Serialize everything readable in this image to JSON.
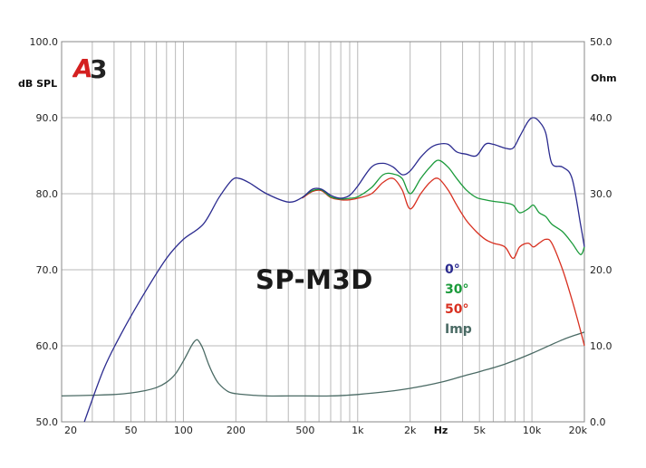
{
  "chart_data": {
    "type": "line",
    "title": "SP-M3D",
    "xlabel": "Hz",
    "ylabel_left": "dB SPL",
    "ylabel_right": "Ohm",
    "x_scale": "log",
    "xlim": [
      20,
      20000
    ],
    "ylim": [
      50,
      100
    ],
    "y2lim": [
      0,
      50
    ],
    "grid": true,
    "legend_position": "center-right",
    "x_ticks": [
      "20",
      "50",
      "100",
      "200",
      "500",
      "1k",
      "2k",
      "Hz",
      "5k",
      "10k",
      "20k"
    ],
    "y_ticks_left": [
      "100.0",
      "90.0",
      "80.0",
      "70.0",
      "60.0",
      "50.0"
    ],
    "y_ticks_right": [
      "50.0",
      "40.0",
      "30.0",
      "20.0",
      "10.0",
      "0.0"
    ],
    "series": [
      {
        "name": "0°",
        "axis": "left",
        "color": "#2b2b8f",
        "x": [
          27,
          35,
          45,
          60,
          80,
          100,
          130,
          160,
          190,
          210,
          240,
          300,
          400,
          480,
          550,
          620,
          700,
          800,
          900,
          1000,
          1200,
          1400,
          1600,
          1800,
          2000,
          2300,
          2600,
          2900,
          3300,
          3700,
          4200,
          4800,
          5400,
          6000,
          7000,
          7800,
          8500,
          9500,
          10200,
          11000,
          12000,
          13000,
          15000,
          17000,
          19000,
          20000
        ],
        "y": [
          50.0,
          57.0,
          62.0,
          67.0,
          71.5,
          74.0,
          76.0,
          79.5,
          81.8,
          82.0,
          81.4,
          80.0,
          78.9,
          79.5,
          80.6,
          80.6,
          79.8,
          79.4,
          79.8,
          81.0,
          83.5,
          84.0,
          83.5,
          82.5,
          83.0,
          84.8,
          86.0,
          86.5,
          86.5,
          85.5,
          85.2,
          85.0,
          86.5,
          86.5,
          86.0,
          86.0,
          87.5,
          89.5,
          90.0,
          89.5,
          88.0,
          84.0,
          83.5,
          82.0,
          76.0,
          73.0
        ]
      },
      {
        "name": "30°",
        "axis": "left",
        "color": "#1a9a3a",
        "x": [
          480,
          550,
          620,
          700,
          800,
          900,
          1000,
          1200,
          1400,
          1600,
          1800,
          2000,
          2300,
          2600,
          2900,
          3300,
          3700,
          4200,
          4800,
          5400,
          6000,
          7000,
          7800,
          8500,
          9500,
          10200,
          11000,
          12000,
          13000,
          15000,
          17000,
          19000,
          20000
        ],
        "y": [
          79.5,
          80.4,
          80.5,
          79.6,
          79.3,
          79.4,
          79.6,
          80.8,
          82.5,
          82.6,
          82.0,
          80.0,
          82.0,
          83.5,
          84.4,
          83.5,
          82.0,
          80.5,
          79.5,
          79.2,
          79.0,
          78.8,
          78.5,
          77.5,
          78.0,
          78.5,
          77.5,
          77.0,
          76.0,
          75.0,
          73.5,
          72.0,
          73.0
        ]
      },
      {
        "name": "50°",
        "axis": "left",
        "color": "#d83020",
        "x": [
          480,
          550,
          620,
          700,
          800,
          900,
          1000,
          1200,
          1400,
          1600,
          1800,
          2000,
          2300,
          2600,
          2900,
          3300,
          3700,
          4200,
          4800,
          5400,
          6000,
          7000,
          7800,
          8500,
          9500,
          10200,
          11000,
          12000,
          13000,
          15000,
          17000,
          19000,
          20000
        ],
        "y": [
          79.4,
          80.3,
          80.4,
          79.5,
          79.2,
          79.2,
          79.4,
          80.0,
          81.5,
          82.0,
          80.5,
          78.0,
          80.0,
          81.5,
          82.0,
          80.5,
          78.5,
          76.5,
          75.0,
          74.0,
          73.5,
          73.0,
          71.5,
          73.0,
          73.5,
          73.0,
          73.5,
          74.0,
          73.5,
          70.0,
          66.0,
          62.0,
          60.0
        ]
      },
      {
        "name": "Imp",
        "axis": "right",
        "color": "#4a6a64",
        "x": [
          20,
          30,
          40,
          50,
          60,
          70,
          80,
          90,
          100,
          110,
          115,
          120,
          125,
          130,
          140,
          150,
          160,
          180,
          200,
          250,
          300,
          400,
          500,
          700,
          1000,
          1500,
          2000,
          3000,
          4000,
          5000,
          7000,
          10000,
          15000,
          20000
        ],
        "y": [
          3.4,
          3.5,
          3.6,
          3.8,
          4.1,
          4.5,
          5.2,
          6.3,
          8.0,
          9.8,
          10.5,
          10.8,
          10.3,
          9.5,
          7.5,
          6.0,
          5.0,
          4.0,
          3.7,
          3.5,
          3.4,
          3.4,
          3.4,
          3.4,
          3.6,
          4.0,
          4.4,
          5.2,
          6.0,
          6.6,
          7.6,
          9.0,
          10.8,
          11.8
        ]
      }
    ]
  },
  "branding": {
    "logo_text": "A3"
  },
  "colors": {
    "grid": "#b8b8b8",
    "frame": "#888888"
  }
}
